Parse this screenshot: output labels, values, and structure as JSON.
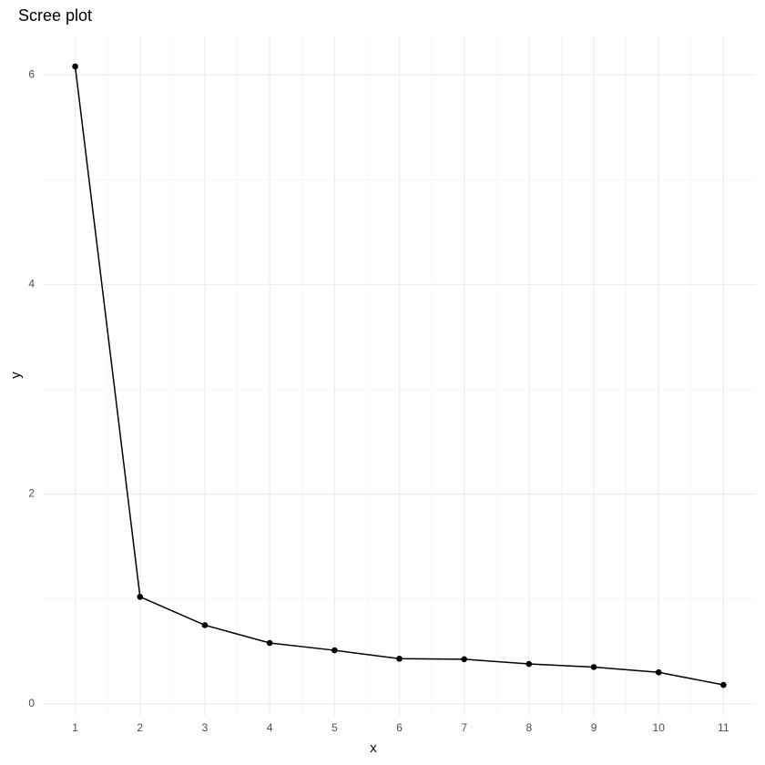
{
  "chart_data": {
    "type": "line",
    "title": "Scree plot",
    "x_label": "x",
    "y_label": "y",
    "x": [
      1,
      2,
      3,
      4,
      5,
      6,
      7,
      8,
      9,
      10,
      11
    ],
    "series": [
      {
        "name": "y",
        "color": "#000000",
        "values": [
          6.08,
          1.02,
          0.75,
          0.58,
          0.51,
          0.43,
          0.425,
          0.38,
          0.35,
          0.3,
          0.18
        ]
      }
    ],
    "xlim": [
      0.5,
      11.5
    ],
    "xticks": [
      1,
      2,
      3,
      4,
      5,
      6,
      7,
      8,
      9,
      10,
      11
    ],
    "ylim": [
      -0.115,
      6.375
    ],
    "yticks": [
      0,
      2,
      4,
      6
    ],
    "grid": true
  }
}
